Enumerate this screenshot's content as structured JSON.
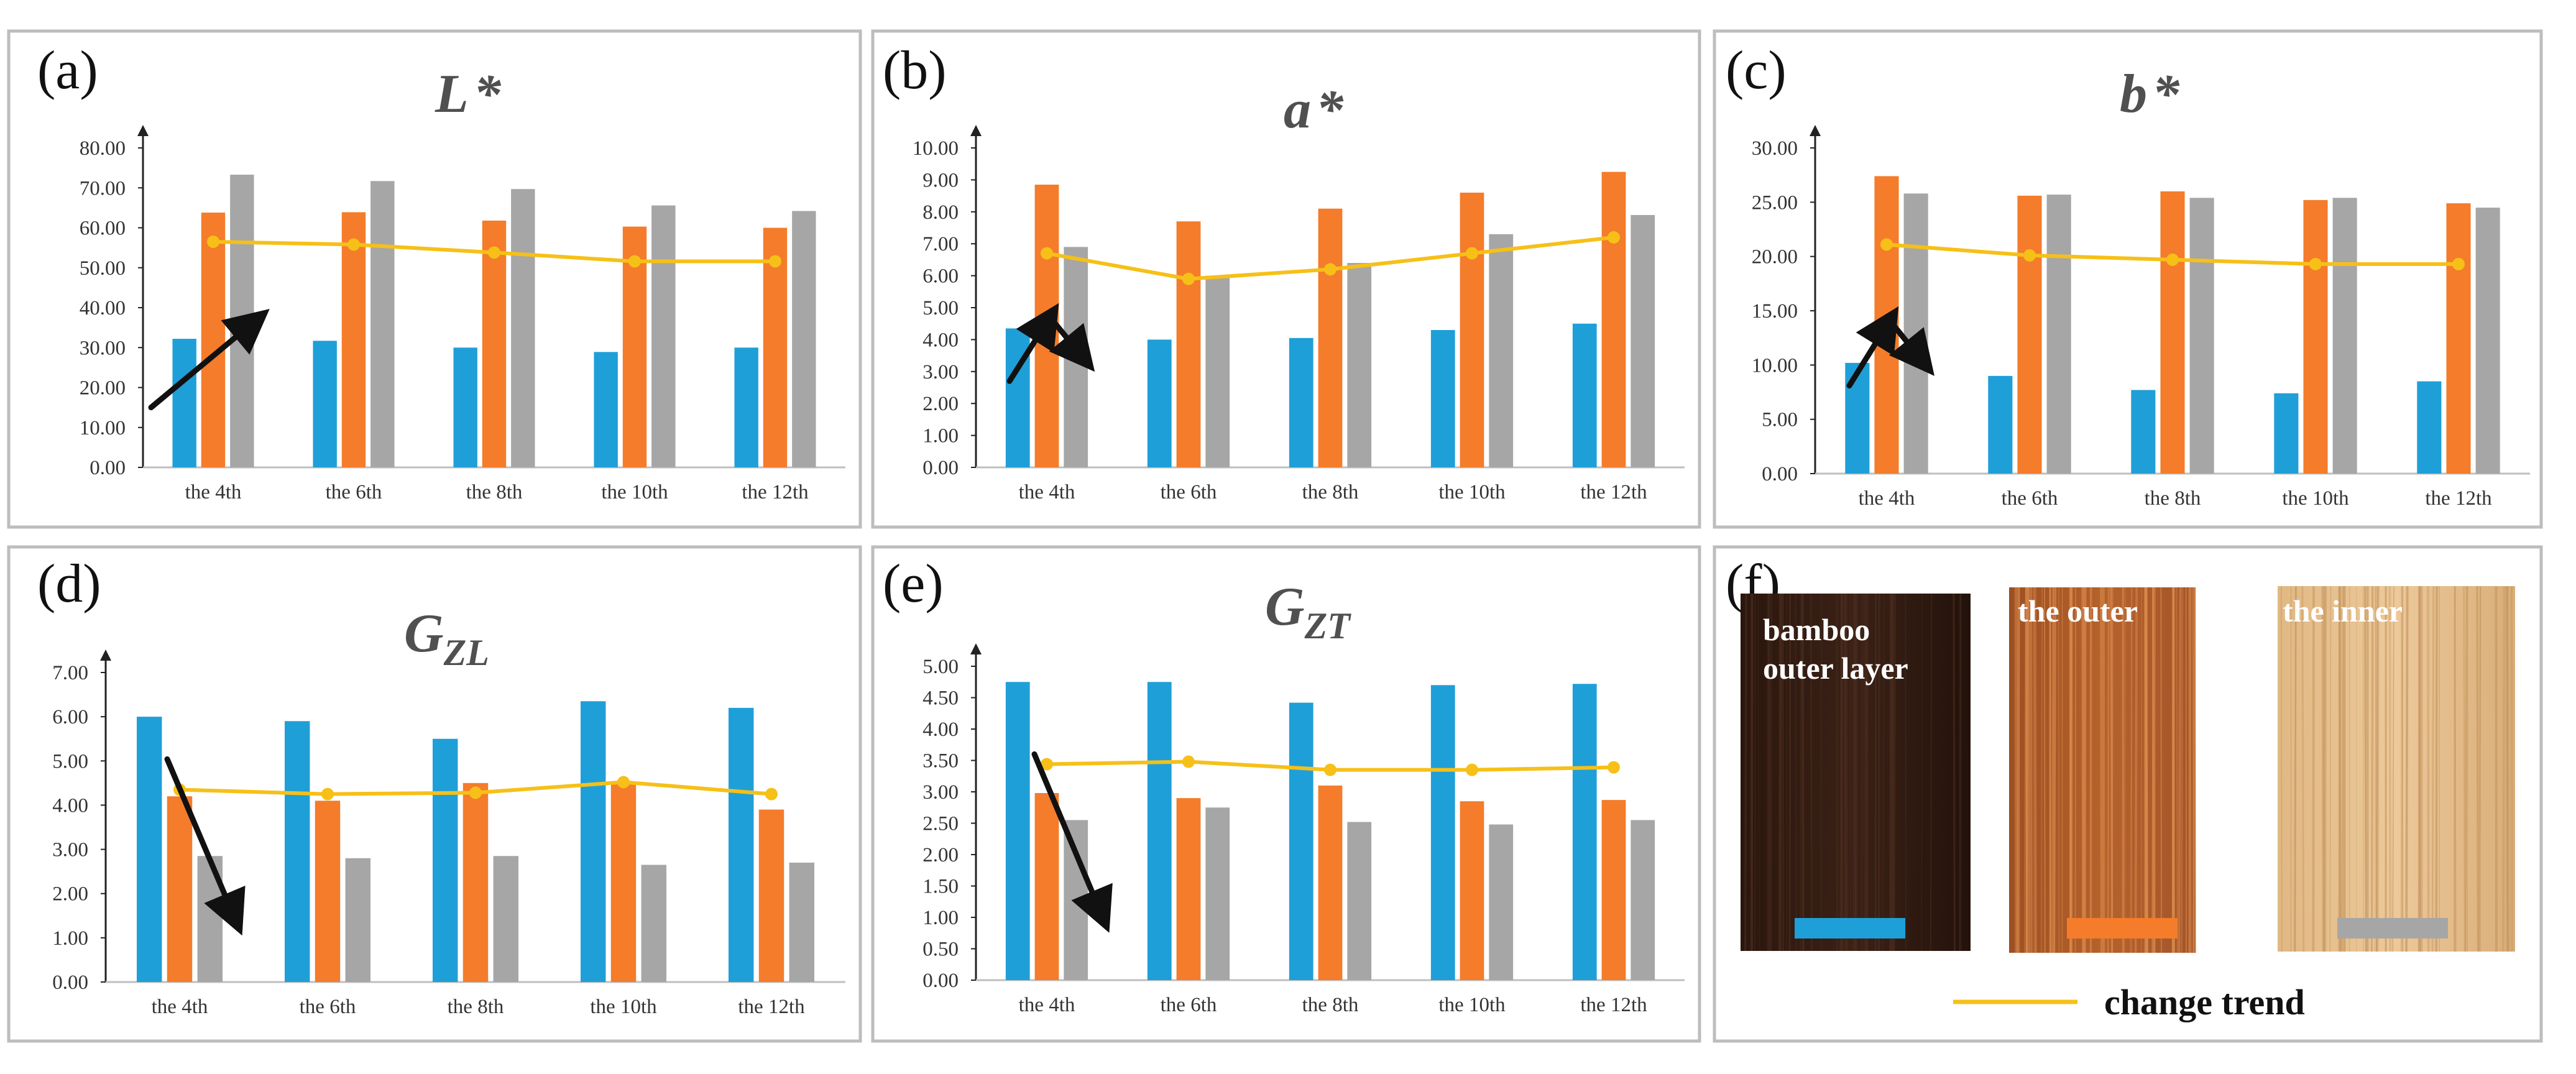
{
  "colors": {
    "outer_layer": "#1f9fd8",
    "the_outer": "#f47c2a",
    "the_inner": "#a6a6a6",
    "trend": "#f6c018",
    "arrow": "#111111"
  },
  "categories": [
    "the 4th",
    "the 6th",
    "the 8th",
    "the 10th",
    "the 12th"
  ],
  "chart_data": [
    {
      "panel": "(a)",
      "title": "L",
      "title_sup": "*",
      "type": "bar",
      "categories": [
        "the 4th",
        "the 6th",
        "the 8th",
        "the 10th",
        "the 12th"
      ],
      "ylim": [
        0,
        80
      ],
      "yticks": [
        "0.00",
        "10.00",
        "20.00",
        "30.00",
        "40.00",
        "50.00",
        "60.00",
        "70.00",
        "80.00"
      ],
      "series": [
        {
          "values": [
            32.2,
            31.7,
            30.0,
            28.9,
            30.0
          ]
        },
        {
          "values": [
            63.8,
            63.9,
            61.8,
            60.3,
            60.0
          ]
        },
        {
          "values": [
            73.3,
            71.7,
            69.7,
            65.6,
            64.2
          ]
        }
      ],
      "trend": [
        56.5,
        55.8,
        53.8,
        51.6,
        51.6
      ],
      "arrow": "up"
    },
    {
      "panel": "(b)",
      "title": "a",
      "title_sup": "*",
      "type": "bar",
      "categories": [
        "the 4th",
        "the 6th",
        "the 8th",
        "the 10th",
        "the 12th"
      ],
      "ylim": [
        0,
        10
      ],
      "yticks": [
        "0.00",
        "1.00",
        "2.00",
        "3.00",
        "4.00",
        "5.00",
        "6.00",
        "7.00",
        "8.00",
        "9.00",
        "10.00"
      ],
      "series": [
        {
          "values": [
            4.35,
            4.0,
            4.05,
            4.3,
            4.5
          ]
        },
        {
          "values": [
            8.85,
            7.7,
            8.1,
            8.6,
            9.25
          ]
        },
        {
          "values": [
            6.9,
            6.0,
            6.4,
            7.3,
            7.9
          ]
        }
      ],
      "trend": [
        6.7,
        5.9,
        6.2,
        6.7,
        7.2
      ],
      "arrow": "peak"
    },
    {
      "panel": "(c)",
      "title": "b",
      "title_sup": "*",
      "type": "bar",
      "categories": [
        "the 4th",
        "the 6th",
        "the 8th",
        "the 10th",
        "the 12th"
      ],
      "ylim": [
        0,
        30
      ],
      "yticks": [
        "0.00",
        "5.00",
        "10.00",
        "15.00",
        "20.00",
        "25.00",
        "30.00"
      ],
      "series": [
        {
          "values": [
            10.2,
            9.0,
            7.7,
            7.4,
            8.5
          ]
        },
        {
          "values": [
            27.4,
            25.6,
            26.0,
            25.2,
            24.9
          ]
        },
        {
          "values": [
            25.8,
            25.7,
            25.4,
            25.4,
            24.5
          ]
        }
      ],
      "trend": [
        21.1,
        20.1,
        19.7,
        19.3,
        19.3
      ],
      "arrow": "peak"
    },
    {
      "panel": "(d)",
      "title": "G",
      "title_sub": "ZL",
      "type": "bar",
      "categories": [
        "the 4th",
        "the 6th",
        "the 8th",
        "the 10th",
        "the 12th"
      ],
      "ylim": [
        0,
        7
      ],
      "yticks": [
        "0.00",
        "1.00",
        "2.00",
        "3.00",
        "4.00",
        "5.00",
        "6.00",
        "7.00"
      ],
      "series": [
        {
          "values": [
            6.0,
            5.9,
            5.5,
            6.35,
            6.2
          ]
        },
        {
          "values": [
            4.2,
            4.1,
            4.5,
            4.5,
            3.9
          ]
        },
        {
          "values": [
            2.85,
            2.8,
            2.85,
            2.65,
            2.7
          ]
        }
      ],
      "trend": [
        4.35,
        4.25,
        4.28,
        4.52,
        4.25
      ],
      "arrow": "down"
    },
    {
      "panel": "(e)",
      "title": "G",
      "title_sub": "ZT",
      "type": "bar",
      "categories": [
        "the 4th",
        "the 6th",
        "the 8th",
        "the 10th",
        "the 12th"
      ],
      "ylim": [
        0,
        5
      ],
      "yticks": [
        "0.00",
        "0.50",
        "1.00",
        "1.50",
        "2.00",
        "2.50",
        "3.00",
        "3.50",
        "4.00",
        "4.50",
        "5.00"
      ],
      "series": [
        {
          "values": [
            4.75,
            4.75,
            4.42,
            4.7,
            4.72
          ]
        },
        {
          "values": [
            2.98,
            2.9,
            3.1,
            2.85,
            2.87
          ]
        },
        {
          "values": [
            2.55,
            2.75,
            2.52,
            2.48,
            2.55
          ]
        }
      ],
      "trend": [
        3.44,
        3.48,
        3.35,
        3.35,
        3.39
      ],
      "arrow": "down"
    }
  ],
  "legend_panel": {
    "panel": "(f)",
    "samples": [
      {
        "label_line1": "bamboo",
        "label_line2": "outer layer",
        "swatch": "#1f9fd8"
      },
      {
        "label_line1": "the outer",
        "label_line2": "",
        "swatch": "#f47c2a"
      },
      {
        "label_line1": "the inner",
        "label_line2": "",
        "swatch": "#a6a6a6"
      }
    ],
    "trend_label": "change trend"
  }
}
